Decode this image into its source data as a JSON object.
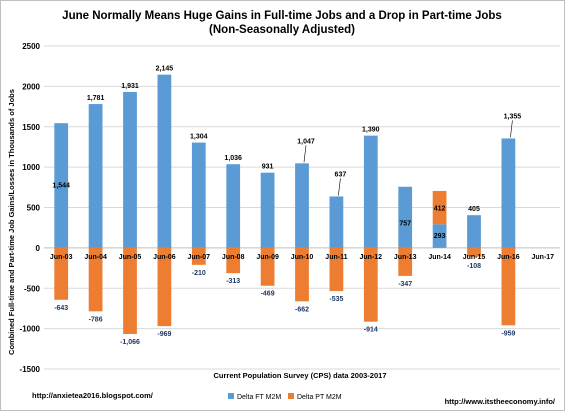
{
  "chart_data": {
    "type": "bar",
    "title": "June Normally Means Huge Gains in Full-time Jobs and a Drop in Part-time Jobs",
    "subtitle": "(Non-Seasonally Adjusted)",
    "xlabel": "Current Population Survey (CPS) data 2003-2017",
    "ylabel": "Combined Full-time and Part-time Job Gains/Losses in Thousands of Jobs",
    "ylim": [
      -1500,
      2500
    ],
    "yticks": [
      2500,
      2000,
      1500,
      1000,
      500,
      0,
      -500,
      -1000,
      -1500
    ],
    "ytick_labels": [
      "2500",
      "2000",
      "1500",
      "1000",
      "500",
      "0",
      "-500",
      "-1000",
      "-1500"
    ],
    "grid": true,
    "legend_position": "bottom",
    "categories": [
      "Jun-03",
      "Jun-04",
      "Jun-05",
      "Jun-06",
      "Jun-07",
      "Jun-08",
      "Jun-09",
      "Jun-10",
      "Jun-11",
      "Jun-12",
      "Jun-13",
      "Jun-14",
      "Jun-15",
      "Jun-16",
      "Jun-17"
    ],
    "series": [
      {
        "name": "Delta FT M2M",
        "color": "#5b9bd5",
        "values": [
          1544,
          1781,
          1931,
          2145,
          1304,
          1036,
          931,
          1047,
          637,
          1390,
          757,
          293,
          405,
          1355,
          null
        ],
        "labels": [
          "1,544",
          "1,781",
          "1,931",
          "2,145",
          "1,304",
          "1,036",
          "931",
          "1,047",
          "637",
          "1,390",
          "757",
          "293",
          "405",
          "1,355",
          ""
        ]
      },
      {
        "name": "Delta PT M2M",
        "color": "#ed7d31",
        "values": [
          -643,
          -786,
          -1066,
          -969,
          -210,
          -313,
          -469,
          -662,
          -535,
          -914,
          -347,
          412,
          -108,
          -959,
          null
        ],
        "labels": [
          "-643",
          "-786",
          "-1,066",
          "-969",
          "-210",
          "-313",
          "-469",
          "-662",
          "-535",
          "-914",
          "-347",
          "412",
          "-108",
          "-959",
          ""
        ]
      }
    ]
  },
  "footer": {
    "left": "http://anxietea2016.blogspot.com/",
    "right": "http://www.itstheeconomy.info/"
  }
}
